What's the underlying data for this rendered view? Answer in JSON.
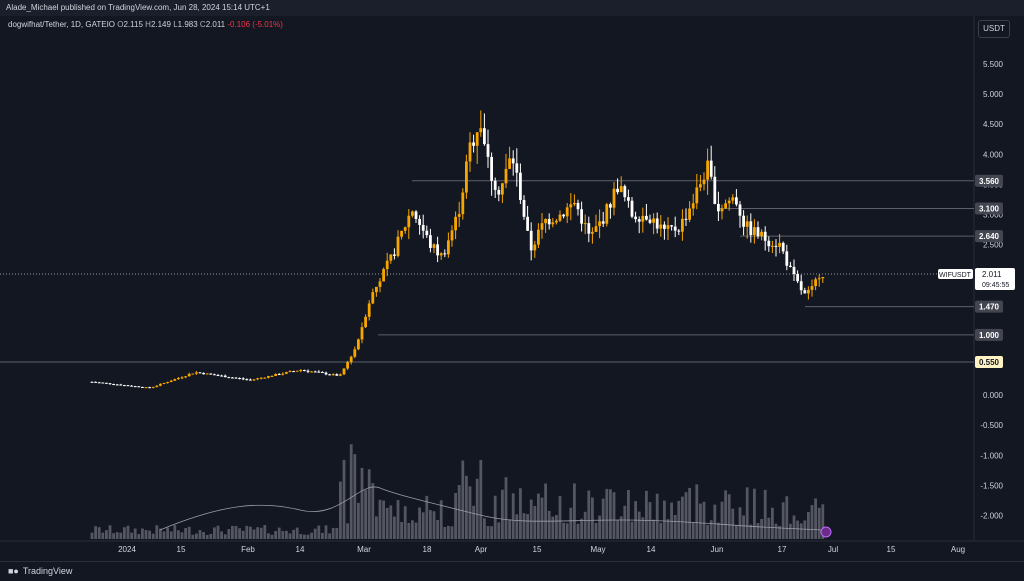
{
  "header": {
    "published": "Alade_Michael published on TradingView.com, Jun 28, 2024 15:14 UTC+1"
  },
  "legend": {
    "symbol": "dogwifhat/Tether, 1D, GATEIO",
    "o_label": "O",
    "o": "2.115",
    "h_label": "H",
    "h": "2.149",
    "l_label": "L",
    "l": "1.983",
    "c_label": "C",
    "c": "2.011",
    "change": "-0.106 (-5.01%)"
  },
  "currency_button": "USDT",
  "footer": {
    "brand": "TradingView",
    "logo": "tradingview-logo-icon"
  },
  "colors": {
    "up": "#f7a600",
    "down": "#ffffff",
    "background": "#131722",
    "grid_line": "#5d606b",
    "volume": "#8a8d96"
  },
  "chart_data": {
    "type": "candlestick",
    "y_axis": {
      "range": [
        -2.3,
        5.9
      ],
      "ticks": [
        "5.500",
        "5.000",
        "4.500",
        "4.000",
        "3.500",
        "3.000",
        "2.500",
        "2.000",
        "1.500",
        "1.000",
        "0.500",
        "0.000",
        "-0.500",
        "-1.000",
        "-1.500",
        "-2.000"
      ]
    },
    "x_axis": {
      "labels": [
        "2024",
        "15",
        "Feb",
        "14",
        "Mar",
        "18",
        "Apr",
        "15",
        "May",
        "14",
        "Jun",
        "17",
        "Jul",
        "15",
        "Aug"
      ]
    },
    "horizontal_levels": [
      {
        "value": 3.56,
        "label": "3.560"
      },
      {
        "value": 3.1,
        "label": "3.100"
      },
      {
        "value": 2.64,
        "label": "2.640"
      },
      {
        "value": 1.47,
        "label": "1.470"
      },
      {
        "value": 1.0,
        "label": "1.000"
      },
      {
        "value": 0.55,
        "label": "0.550",
        "highlight": true
      }
    ],
    "last_price": {
      "symbol": "WIFUSDT",
      "value": 2.011,
      "label": "2.011",
      "countdown": "09:45:55"
    },
    "candles_approx": [
      {
        "t": "Jan 1",
        "c": 0.24
      },
      {
        "t": "Jan 8",
        "c": 0.18
      },
      {
        "t": "Jan 15",
        "c": 0.38
      },
      {
        "t": "Jan 22",
        "c": 0.32
      },
      {
        "t": "Feb 1",
        "c": 0.3
      },
      {
        "t": "Feb 14",
        "c": 0.42
      },
      {
        "t": "Feb 28",
        "c": 0.32
      },
      {
        "t": "Mar 5",
        "c": 1.5
      },
      {
        "t": "Mar 14",
        "c": 3.1
      },
      {
        "t": "Mar 18",
        "c": 2.3
      },
      {
        "t": "Mar 28",
        "c": 3.8
      },
      {
        "t": "Mar 31",
        "c": 4.6
      },
      {
        "t": "Apr 5",
        "c": 3.6
      },
      {
        "t": "Apr 10",
        "c": 3.9
      },
      {
        "t": "Apr 15",
        "c": 2.5
      },
      {
        "t": "Apr 22",
        "c": 3.1
      },
      {
        "t": "May 1",
        "c": 2.6
      },
      {
        "t": "May 7",
        "c": 3.3
      },
      {
        "t": "May 14",
        "c": 3.0
      },
      {
        "t": "May 22",
        "c": 2.8
      },
      {
        "t": "Jun 1",
        "c": 3.7
      },
      {
        "t": "Jun 7",
        "c": 3.2
      },
      {
        "t": "Jun 12",
        "c": 2.7
      },
      {
        "t": "Jun 18",
        "c": 2.2
      },
      {
        "t": "Jun 24",
        "c": 1.6
      },
      {
        "t": "Jun 28",
        "c": 2.011
      }
    ]
  }
}
